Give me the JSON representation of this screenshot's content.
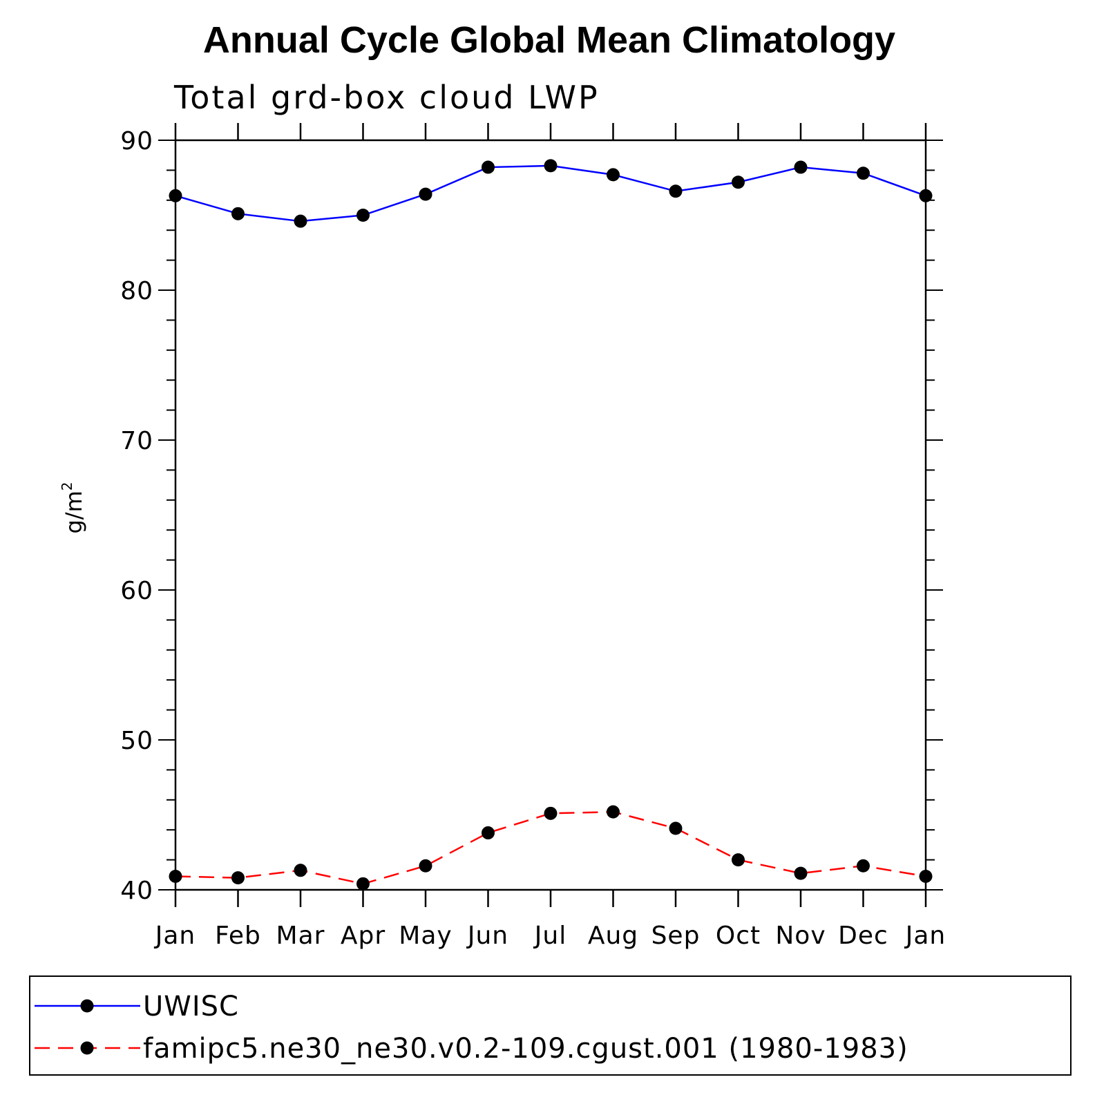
{
  "chart_data": {
    "type": "line",
    "title": "Annual Cycle Global Mean Climatology",
    "subtitle": "Total grd-box cloud LWP",
    "ylabel": "g/m",
    "ylabel_superscript": "2",
    "xlabel": "",
    "categories": [
      "Jan",
      "Feb",
      "Mar",
      "Apr",
      "May",
      "Jun",
      "Jul",
      "Aug",
      "Sep",
      "Oct",
      "Nov",
      "Dec",
      "Jan"
    ],
    "ylim": [
      40,
      90
    ],
    "yticks": [
      40,
      50,
      60,
      70,
      80,
      90
    ],
    "grid": false,
    "legend_position": "bottom",
    "series": [
      {
        "name": "UWISC",
        "color": "#0000ff",
        "line_style": "solid",
        "marker": "filled-circle",
        "values": [
          86.3,
          85.1,
          84.6,
          85.0,
          86.4,
          88.2,
          88.3,
          87.7,
          86.6,
          87.2,
          88.2,
          87.8,
          86.3
        ]
      },
      {
        "name": "famipc5.ne30_ne30.v0.2-109.cgust.001 (1980-1983)",
        "color": "#ff0000",
        "line_style": "dashed",
        "marker": "filled-circle",
        "values": [
          40.9,
          40.8,
          41.3,
          40.4,
          41.6,
          43.8,
          45.1,
          45.2,
          44.1,
          42.0,
          41.1,
          41.6,
          40.9
        ]
      }
    ]
  }
}
